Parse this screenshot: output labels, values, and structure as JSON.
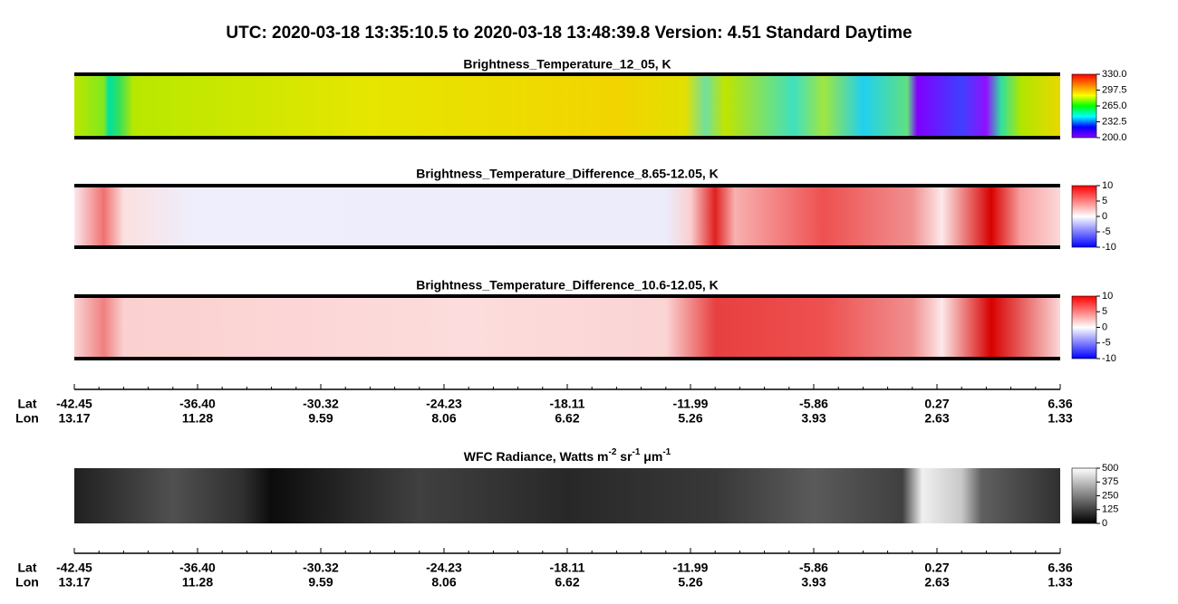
{
  "title": "UTC:  2020-03-18   13:35:10.5  to  2020-03-18   13:48:39.8    Version: 4.51  Standard Daytime",
  "panels": [
    {
      "title": "Brightness_Temperature_12_05, K",
      "colorbar": {
        "lim": [
          200,
          330
        ],
        "ticks": [
          {
            "value": 200,
            "label": "200.0"
          },
          {
            "value": 232.5,
            "label": "232.5"
          },
          {
            "value": 265,
            "label": "265.0"
          },
          {
            "value": 297.5,
            "label": "297.5"
          },
          {
            "value": 330,
            "label": "330.0"
          }
        ],
        "colormap": [
          "#8a00ff",
          "#0000ff",
          "#00ffff",
          "#00ff00",
          "#ffff00",
          "#ff8000",
          "#ff0000"
        ]
      }
    },
    {
      "title": "Brightness_Temperature_Difference_8.65-12.05, K",
      "colorbar": {
        "lim": [
          -10,
          10
        ],
        "ticks": [
          -10,
          -5,
          0,
          5,
          10
        ],
        "colormap": [
          "#0000ff",
          "#ffffff",
          "#ff0000"
        ]
      }
    },
    {
      "title": "Brightness_Temperature_Difference_10.6-12.05, K",
      "colorbar": {
        "lim": [
          -10,
          10
        ],
        "ticks": [
          -10,
          -5,
          0,
          5,
          10
        ],
        "colormap": [
          "#0000ff",
          "#ffffff",
          "#ff0000"
        ]
      }
    },
    {
      "title_parts": [
        "WFC Radiance, Watts m",
        "-2",
        " sr",
        "-1",
        " μm",
        "-1"
      ],
      "colorbar": {
        "lim": [
          0,
          500
        ],
        "ticks": [
          0,
          125,
          250,
          375,
          500
        ],
        "colormap": [
          "#000000",
          "#ffffff"
        ]
      }
    }
  ],
  "axes": [
    {
      "lat_label": "Lat",
      "lon_label": "Lon",
      "lat": [
        "-42.45",
        "-36.40",
        "-30.32",
        "-24.23",
        "-18.11",
        "-11.99",
        "-5.86",
        "0.27",
        "6.36"
      ],
      "lon": [
        "13.17",
        "11.28",
        "9.59",
        "8.06",
        "6.62",
        "5.26",
        "3.93",
        "2.63",
        "1.33"
      ]
    },
    {
      "lat_label": "Lat",
      "lon_label": "Lon",
      "lat": [
        "-42.45",
        "-36.40",
        "-30.32",
        "-24.23",
        "-18.11",
        "-11.99",
        "-5.86",
        "0.27",
        "6.36"
      ],
      "lon": [
        "13.17",
        "11.28",
        "9.59",
        "8.06",
        "6.62",
        "5.26",
        "3.93",
        "2.63",
        "1.33"
      ]
    }
  ]
}
